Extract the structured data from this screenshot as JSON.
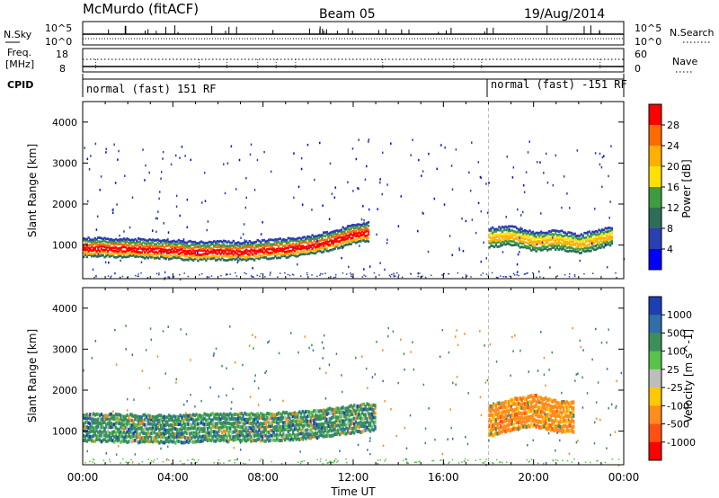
{
  "header": {
    "station": "McMurdo (fitACF)",
    "beam": "Beam 05",
    "date": "19/Aug/2014"
  },
  "strips": {
    "nsky_label": "N.Sky",
    "nsearch_label": "N.Search",
    "n_left_ticks": [
      "10^5",
      "10^0"
    ],
    "n_right_ticks": [
      "10^5",
      "10^0"
    ],
    "freq_label": "Freq.",
    "freq_unit": "[MHz]",
    "freq_ticks": [
      "18",
      "8"
    ],
    "nave_label": "Nave",
    "nave_ticks": [
      "60",
      "0"
    ],
    "cpid_label": "CPID",
    "cpid_segments": [
      {
        "label": "normal (fast) 151 RF",
        "start_hour": 0
      },
      {
        "label": "normal (fast) -151 RF",
        "start_hour": 18
      }
    ]
  },
  "chart_data": [
    {
      "type": "heatmap",
      "title": "",
      "xlabel": "",
      "ylabel": "Slant Range [km]",
      "xlim": [
        0,
        24
      ],
      "ylim": [
        180,
        4500
      ],
      "y_ticks": [
        1000,
        2000,
        3000,
        4000
      ],
      "colorbar": {
        "label": "Power [dB]",
        "ticks": [
          "28",
          "24",
          "20",
          "16",
          "12",
          "8",
          "4"
        ],
        "colors": [
          "#ff0000",
          "#ff6a00",
          "#ffb000",
          "#ffe000",
          "#3f9b3f",
          "#2d6e5a",
          "#2a3fb0",
          "#0000ff"
        ]
      },
      "series": [
        {
          "band_center": [
            [
              0,
              920
            ],
            [
              1,
              910
            ],
            [
              2,
              900
            ],
            [
              3,
              880
            ],
            [
              4,
              860
            ],
            [
              5,
              820
            ],
            [
              6,
              840
            ],
            [
              7,
              820
            ],
            [
              8,
              860
            ],
            [
              9,
              900
            ],
            [
              10,
              960
            ],
            [
              11,
              1080
            ],
            [
              12,
              1250
            ],
            [
              12.7,
              1300
            ]
          ],
          "band_width_km": 420,
          "value": 26
        },
        {
          "band_center": [
            [
              18,
              1150
            ],
            [
              19,
              1200
            ],
            [
              20,
              1050
            ],
            [
              21,
              1100
            ],
            [
              22,
              1000
            ],
            [
              23.5,
              1200
            ]
          ],
          "band_width_km": 420,
          "value": 18
        }
      ]
    },
    {
      "type": "heatmap",
      "title": "",
      "xlabel": "Time UT",
      "ylabel": "Slant Range [km]",
      "xlim": [
        0,
        24
      ],
      "ylim": [
        180,
        4500
      ],
      "x_ticks": [
        "00:00",
        "04:00",
        "08:00",
        "12:00",
        "16:00",
        "20:00",
        "00:00"
      ],
      "y_ticks": [
        1000,
        2000,
        3000,
        4000
      ],
      "colorbar": {
        "label": "Velocity [m s^-1]",
        "ticks": [
          "1000",
          "500",
          "100",
          "25",
          "-25",
          "-100",
          "-500",
          "-1000"
        ],
        "colors": [
          "#1e3fb4",
          "#2f6ea8",
          "#3c8f5a",
          "#59c24a",
          "#bdbdbd",
          "#ffc800",
          "#ff8c1e",
          "#ff5014",
          "#ff0000"
        ]
      },
      "series": [
        {
          "band_center": [
            [
              0,
              1050
            ],
            [
              2,
              1020
            ],
            [
              4,
              1000
            ],
            [
              6,
              1050
            ],
            [
              8,
              1050
            ],
            [
              10,
              1100
            ],
            [
              12,
              1250
            ],
            [
              13,
              1300
            ]
          ],
          "band_width_km": 620,
          "value": 100
        },
        {
          "band_center": [
            [
              18,
              1200
            ],
            [
              19,
              1350
            ],
            [
              20,
              1450
            ],
            [
              21,
              1300
            ],
            [
              21.8,
              1300
            ]
          ],
          "band_width_km": 700,
          "value": -300
        }
      ]
    }
  ]
}
